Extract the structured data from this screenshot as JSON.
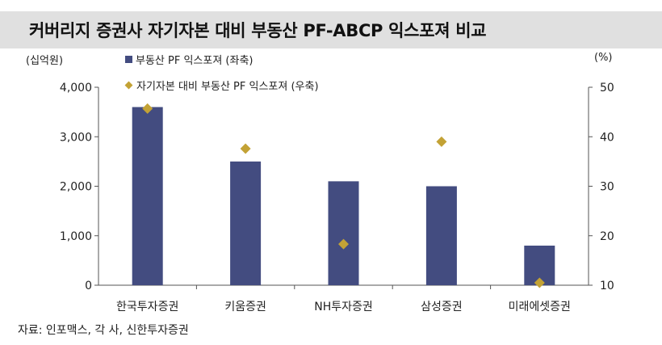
{
  "title": "커버리지 증권사 자기자본 대비 부동산 PF-ABCP 익스포져 비교",
  "source": "자료: 인포맥스, 각 사, 신한투자증권",
  "colors": {
    "bar": "#434c80",
    "marker": "#c3a235",
    "title_bg": "#e0e0e0"
  },
  "chart_data": {
    "type": "bar",
    "categories": [
      "한국투자증권",
      "키움증권",
      "NH투자증권",
      "삼성증권",
      "미래에셋증권"
    ],
    "series": [
      {
        "name": "부동산 PF 익스포져 (좌축)",
        "type": "bar",
        "axis": "left",
        "values": [
          3600,
          2500,
          2100,
          2000,
          800
        ]
      },
      {
        "name": "자기자본 대비 부동산 PF 익스포져 (우축)",
        "type": "scatter",
        "axis": "right",
        "values": [
          45.7,
          37.6,
          18.3,
          39,
          10.5
        ]
      }
    ],
    "y_left": {
      "unit": "(십억원)",
      "ylim": [
        0,
        4000
      ],
      "ticks": [
        0,
        1000,
        2000,
        3000,
        4000
      ],
      "tick_labels": [
        "0",
        "1,000",
        "2,000",
        "3,000",
        "4,000"
      ]
    },
    "y_right": {
      "unit": "(%)",
      "ylim": [
        10,
        50
      ],
      "ticks": [
        10,
        20,
        30,
        40,
        50
      ],
      "tick_labels": [
        "10",
        "20",
        "30",
        "40",
        "50"
      ]
    },
    "grid": false,
    "legend": "top-left"
  }
}
